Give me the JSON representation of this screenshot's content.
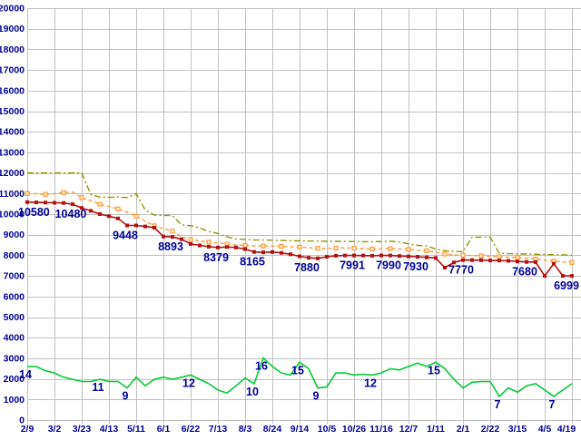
{
  "chart_data": {
    "type": "line",
    "title": "",
    "x": {
      "tick_labels": [
        "2/9",
        "3/2",
        "3/23",
        "4/13",
        "5/11",
        "6/1",
        "6/22",
        "7/13",
        "8/3",
        "8/24",
        "9/14",
        "10/5",
        "10/26",
        "11/16",
        "12/7",
        "1/11",
        "2/1",
        "2/22",
        "3/15",
        "4/5",
        "4/19"
      ],
      "points_per_tick_interval": 3,
      "total_points": 61
    },
    "y": {
      "min": 0,
      "max": 20000,
      "tick_step": 1000
    },
    "grid": true,
    "legend_position": "none",
    "background_color": "#ffffff",
    "grid_color": "#c0c0c0",
    "axis_text_color": "#000099",
    "label_text_color": "#000099",
    "series": [
      {
        "name": "upper-dashdot-line",
        "color": "#949400",
        "line_style": "dash-dot",
        "marker": "none",
        "values": [
          12000,
          12000,
          12000,
          12000,
          12000,
          12000,
          12000,
          10950,
          10830,
          10820,
          10830,
          10800,
          11000,
          10200,
          9950,
          9940,
          9930,
          9470,
          9440,
          9330,
          9150,
          9060,
          8900,
          8790,
          8770,
          8750,
          8740,
          8730,
          8720,
          8710,
          8700,
          8690,
          8690,
          8680,
          8680,
          8670,
          8670,
          8660,
          8660,
          8670,
          8680,
          8650,
          8550,
          8480,
          8460,
          8300,
          8220,
          8190,
          8170,
          8880,
          8880,
          8880,
          8100,
          8080,
          8070,
          8060,
          8050,
          8040,
          8030,
          8020,
          8000
        ],
        "point_labels": []
      },
      {
        "name": "middle-dashed-line",
        "color": "#ff9933",
        "line_style": "dashed",
        "marker": "open-square",
        "values": [
          11000,
          10990,
          10960,
          10990,
          11050,
          11070,
          10800,
          10650,
          10480,
          10370,
          10250,
          10100,
          9900,
          9650,
          9430,
          9300,
          9170,
          8900,
          8760,
          8700,
          8640,
          8600,
          8550,
          8500,
          8480,
          8460,
          8450,
          8440,
          8430,
          8420,
          8400,
          8370,
          8340,
          8330,
          8350,
          8360,
          8350,
          8330,
          8310,
          8330,
          8320,
          8300,
          8280,
          8250,
          8220,
          8150,
          8060,
          8020,
          8000,
          7990,
          7970,
          7950,
          7930,
          7910,
          7890,
          7860,
          7820,
          7760,
          7720,
          7680,
          7650
        ],
        "point_labels": []
      },
      {
        "name": "lower-solid-line",
        "color": "#b31111",
        "line_style": "solid",
        "marker": "filled-square",
        "values": [
          10580,
          10570,
          10560,
          10550,
          10540,
          10480,
          10300,
          10160,
          10000,
          9900,
          9790,
          9448,
          9448,
          9400,
          9340,
          8910,
          8893,
          8780,
          8550,
          8480,
          8420,
          8379,
          8400,
          8380,
          8300,
          8165,
          8140,
          8160,
          8120,
          8050,
          7950,
          7880,
          7850,
          7930,
          7980,
          7990,
          7991,
          7985,
          7980,
          7990,
          7990,
          7965,
          7945,
          7930,
          7900,
          7870,
          7400,
          7650,
          7770,
          7765,
          7760,
          7750,
          7745,
          7730,
          7700,
          7680,
          7670,
          7000,
          7590,
          6999,
          6999
        ],
        "point_labels": [
          {
            "index": 0,
            "text": "10580"
          },
          {
            "index": 5,
            "text": "10480"
          },
          {
            "index": 11,
            "text": "9448"
          },
          {
            "index": 16,
            "text": "8893"
          },
          {
            "index": 21,
            "text": "8379"
          },
          {
            "index": 25,
            "text": "8165"
          },
          {
            "index": 31,
            "text": "7880"
          },
          {
            "index": 36,
            "text": "7991"
          },
          {
            "index": 40,
            "text": "7990"
          },
          {
            "index": 43,
            "text": "7930"
          },
          {
            "index": 48,
            "text": "7770"
          },
          {
            "index": 55,
            "text": "7680"
          },
          {
            "index": 60,
            "text": "6999"
          }
        ]
      },
      {
        "name": "green-count-line",
        "color": "#00cc33",
        "line_style": "solid",
        "marker": "none",
        "secondary_scale": true,
        "values": [
          14,
          14,
          13,
          12.5,
          11.5,
          11,
          10.5,
          10.5,
          11,
          10.5,
          10.5,
          9,
          11.5,
          9.5,
          11,
          11.5,
          11,
          11.5,
          12,
          11,
          10,
          8.5,
          7.8,
          9.5,
          11.3,
          10,
          16,
          14,
          12.5,
          12,
          15,
          13.5,
          9,
          9.2,
          12.5,
          12.5,
          12,
          12.2,
          12,
          12.5,
          13.5,
          13.2,
          14,
          14.8,
          14,
          15,
          13.5,
          11,
          9,
          10.3,
          10.5,
          10.5,
          7,
          9,
          8,
          9.5,
          10,
          8.5,
          7,
          8.5,
          10
        ],
        "point_labels": [
          {
            "index": 0,
            "text": "14"
          },
          {
            "index": 8,
            "text": "11"
          },
          {
            "index": 11,
            "text": "9"
          },
          {
            "index": 18,
            "text": "12"
          },
          {
            "index": 25,
            "text": "10"
          },
          {
            "index": 26,
            "text": "16"
          },
          {
            "index": 30,
            "text": "15"
          },
          {
            "index": 32,
            "text": "9"
          },
          {
            "index": 38,
            "text": "12"
          },
          {
            "index": 45,
            "text": "15"
          },
          {
            "index": 52,
            "text": "7"
          },
          {
            "index": 58,
            "text": "7"
          }
        ]
      }
    ]
  }
}
